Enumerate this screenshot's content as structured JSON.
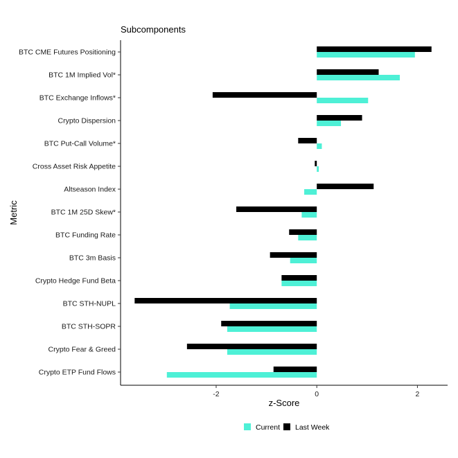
{
  "chart_data": {
    "type": "bar",
    "orientation": "horizontal",
    "title": "Subcomponents",
    "xlabel": "z-Score",
    "ylabel": "Metric",
    "xlim": [
      -3.9,
      2.6
    ],
    "xticks": [
      -2,
      0,
      2
    ],
    "grid": false,
    "legend_position": "bottom",
    "categories": [
      "BTC CME Futures Positioning",
      "BTC 1M Implied Vol*",
      "BTC Exchange Inflows*",
      "Crypto Dispersion",
      "BTC Put-Call Volume*",
      "Cross Asset Risk Appetite",
      "Altseason Index",
      "BTC 1M 25D Skew*",
      "BTC Funding Rate",
      "BTC 3m Basis",
      "Crypto Hedge Fund Beta",
      "BTC STH-NUPL",
      "BTC STH-SOPR",
      "Crypto Fear & Greed",
      "Crypto ETP Fund Flows"
    ],
    "series": [
      {
        "name": "Current",
        "color": "#4ef0d6",
        "values": [
          1.95,
          1.65,
          1.02,
          0.48,
          0.1,
          0.04,
          -0.25,
          -0.3,
          -0.37,
          -0.53,
          -0.7,
          -1.73,
          -1.78,
          -1.78,
          -2.98
        ]
      },
      {
        "name": "Last Week",
        "color": "#000000",
        "values": [
          2.28,
          1.23,
          -2.07,
          0.9,
          -0.37,
          -0.04,
          1.13,
          -1.6,
          -0.55,
          -0.93,
          -0.7,
          -3.62,
          -1.9,
          -2.58,
          -0.86
        ]
      }
    ]
  }
}
